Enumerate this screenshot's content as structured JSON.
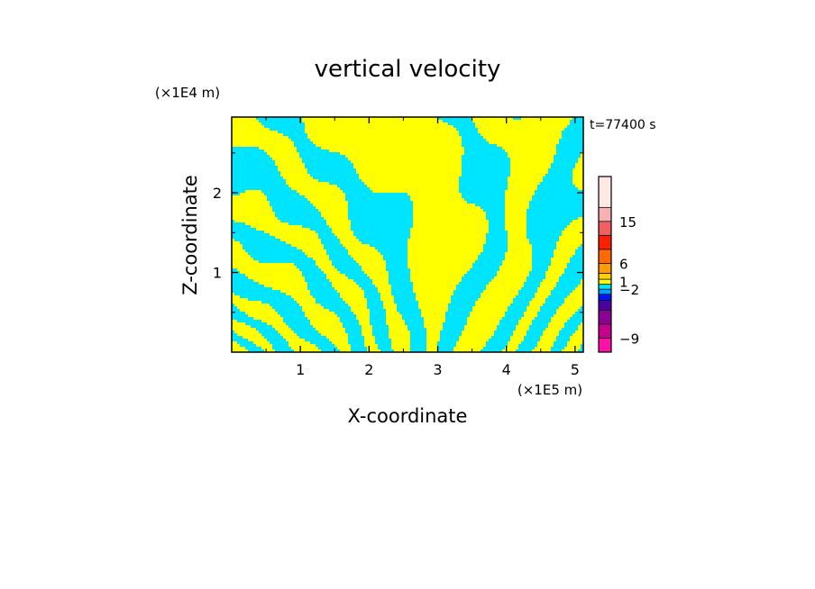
{
  "chart_data": {
    "type": "heatmap",
    "title": "vertical velocity",
    "xlabel": "X-coordinate",
    "ylabel": "Z-coordinate",
    "x_unit": "(×1E5 m)",
    "y_unit": "(×1E4 m)",
    "time_label": "t=77400 s",
    "xlim": [
      0,
      5.12
    ],
    "ylim": [
      0,
      2.95
    ],
    "x_ticks": [
      1,
      2,
      3,
      4,
      5
    ],
    "y_ticks": [
      1,
      2
    ],
    "field_colors": {
      "positive": "#ffff00",
      "negative": "#00e5ff"
    },
    "colorbar": {
      "levels": [
        {
          "color": "#ff10a8"
        },
        {
          "color": "#c4008c"
        },
        {
          "color": "#8c0096"
        },
        {
          "color": "#4b00a0"
        },
        {
          "color": "#0012ff"
        },
        {
          "color": "#00a0ff"
        },
        {
          "color": "#00e5ff"
        },
        {
          "color": "#ffff00"
        },
        {
          "color": "#ffd000"
        },
        {
          "color": "#ff9a00"
        },
        {
          "color": "#ff6a00"
        },
        {
          "color": "#ff2000"
        },
        {
          "color": "#f06060"
        },
        {
          "color": "#f8b0b0"
        },
        {
          "color": "#fde8e4"
        }
      ],
      "tick_labels": [
        {
          "label": "15",
          "level": 13.0
        },
        {
          "label": "6",
          "level": 10.0
        },
        {
          "label": "1",
          "level": 7.6
        },
        {
          "label": "−2",
          "level": 6.0
        },
        {
          "label": "−9",
          "level": 1.0
        }
      ]
    }
  }
}
